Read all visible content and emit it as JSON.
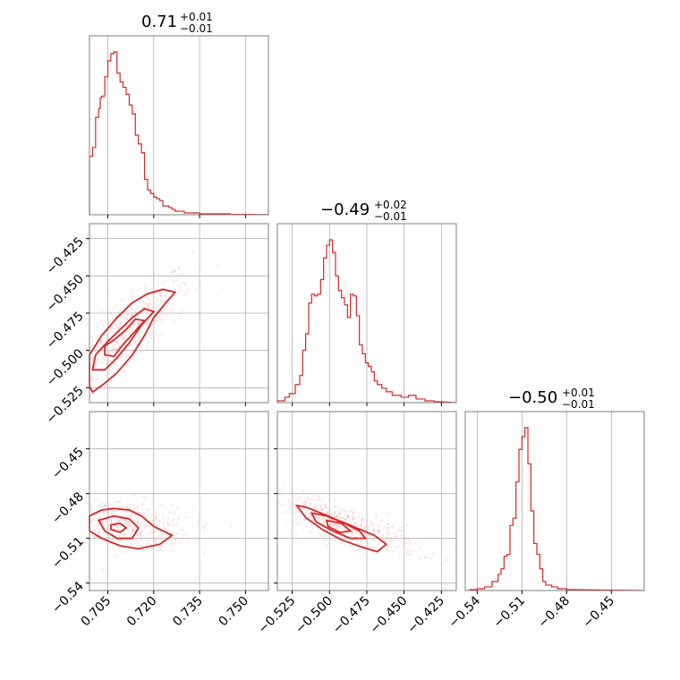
{
  "figure": {
    "style_color": "#d62728",
    "fill_light": "#f6c6c7",
    "fill_mid": "#ee8f91",
    "fill_dark": "#e04a4d"
  },
  "chart_data": [
    {
      "type": "histogram",
      "panel": "hist-0",
      "title": {
        "main": "0.71",
        "sup": "+0.01",
        "sub": "−0.01"
      },
      "x_range": [
        0.699,
        0.7575
      ],
      "x_ticks": [
        0.705,
        0.72,
        0.735,
        0.75
      ],
      "show_tick_labels": false,
      "grid": true,
      "bins": [
        [
          0.699,
          0.33
        ],
        [
          0.7,
          0.38
        ],
        [
          0.701,
          0.55
        ],
        [
          0.702,
          0.6
        ],
        [
          0.7025,
          0.66
        ],
        [
          0.703,
          0.67
        ],
        [
          0.704,
          0.78
        ],
        [
          0.705,
          0.87
        ],
        [
          0.706,
          0.91
        ],
        [
          0.707,
          0.92
        ],
        [
          0.708,
          0.8
        ],
        [
          0.709,
          0.75
        ],
        [
          0.71,
          0.72
        ],
        [
          0.711,
          0.68
        ],
        [
          0.712,
          0.62
        ],
        [
          0.713,
          0.57
        ],
        [
          0.714,
          0.45
        ],
        [
          0.715,
          0.4
        ],
        [
          0.716,
          0.35
        ],
        [
          0.717,
          0.2
        ],
        [
          0.718,
          0.14
        ],
        [
          0.719,
          0.12
        ],
        [
          0.72,
          0.1
        ],
        [
          0.721,
          0.09
        ],
        [
          0.722,
          0.08
        ],
        [
          0.723,
          0.05
        ],
        [
          0.724,
          0.05
        ],
        [
          0.725,
          0.04
        ],
        [
          0.726,
          0.03
        ],
        [
          0.727,
          0.02
        ],
        [
          0.728,
          0.02
        ],
        [
          0.729,
          0.02
        ],
        [
          0.73,
          0.01
        ],
        [
          0.732,
          0.01
        ],
        [
          0.735,
          0.005
        ],
        [
          0.74,
          0.005
        ],
        [
          0.745,
          0.002
        ],
        [
          0.75,
          0.002
        ]
      ]
    },
    {
      "type": "scatter-contour",
      "panel": "joint-1-0",
      "x_range": [
        0.699,
        0.7575
      ],
      "y_range": [
        -0.535,
        -0.415
      ],
      "x_ticks": [
        0.705,
        0.72,
        0.735,
        0.75
      ],
      "y_ticks": [
        -0.425,
        -0.45,
        -0.475,
        -0.5,
        -0.525
      ],
      "y_tick_labels": [
        "−0.425",
        "−0.450",
        "−0.475",
        "−0.500",
        "−0.525"
      ],
      "grid": true,
      "center": [
        0.71,
        -0.49
      ],
      "spread": [
        0.008,
        0.015
      ],
      "correlation": 0.85,
      "contours": [
        [
          [
            0.699,
            -0.524
          ],
          [
            0.7,
            -0.528
          ],
          [
            0.704,
            -0.522
          ],
          [
            0.708,
            -0.515
          ],
          [
            0.713,
            -0.503
          ],
          [
            0.717,
            -0.49
          ],
          [
            0.72,
            -0.478
          ],
          [
            0.724,
            -0.468
          ],
          [
            0.727,
            -0.461
          ],
          [
            0.723,
            -0.459
          ],
          [
            0.718,
            -0.462
          ],
          [
            0.713,
            -0.468
          ],
          [
            0.708,
            -0.478
          ],
          [
            0.703,
            -0.49
          ],
          [
            0.699,
            -0.503
          ]
        ],
        [
          [
            0.7,
            -0.513
          ],
          [
            0.704,
            -0.513
          ],
          [
            0.708,
            -0.505
          ],
          [
            0.712,
            -0.495
          ],
          [
            0.716,
            -0.483
          ],
          [
            0.72,
            -0.474
          ],
          [
            0.717,
            -0.472
          ],
          [
            0.713,
            -0.478
          ],
          [
            0.709,
            -0.486
          ],
          [
            0.705,
            -0.494
          ],
          [
            0.701,
            -0.503
          ]
        ],
        [
          [
            0.704,
            -0.503
          ],
          [
            0.707,
            -0.504
          ],
          [
            0.71,
            -0.496
          ],
          [
            0.714,
            -0.487
          ],
          [
            0.717,
            -0.48
          ],
          [
            0.714,
            -0.479
          ],
          [
            0.711,
            -0.486
          ],
          [
            0.707,
            -0.493
          ],
          [
            0.704,
            -0.497
          ]
        ]
      ]
    },
    {
      "type": "histogram",
      "panel": "hist-1",
      "title": {
        "main": "−0.49",
        "sup": "+0.02",
        "sub": "−0.01"
      },
      "x_range": [
        -0.535,
        -0.415
      ],
      "x_ticks": [
        -0.525,
        -0.5,
        -0.475,
        -0.45,
        -0.425
      ],
      "show_tick_labels": false,
      "grid": true,
      "bins": [
        [
          -0.535,
          0.01
        ],
        [
          -0.53,
          0.03
        ],
        [
          -0.527,
          0.05
        ],
        [
          -0.523,
          0.1
        ],
        [
          -0.52,
          0.15
        ],
        [
          -0.518,
          0.29
        ],
        [
          -0.516,
          0.38
        ],
        [
          -0.514,
          0.55
        ],
        [
          -0.512,
          0.6
        ],
        [
          -0.51,
          0.59
        ],
        [
          -0.508,
          0.6
        ],
        [
          -0.506,
          0.68
        ],
        [
          -0.504,
          0.8
        ],
        [
          -0.502,
          0.87
        ],
        [
          -0.5,
          0.9
        ],
        [
          -0.498,
          0.83
        ],
        [
          -0.496,
          0.7
        ],
        [
          -0.494,
          0.62
        ],
        [
          -0.492,
          0.58
        ],
        [
          -0.49,
          0.54
        ],
        [
          -0.488,
          0.47
        ],
        [
          -0.486,
          0.6
        ],
        [
          -0.484,
          0.59
        ],
        [
          -0.482,
          0.48
        ],
        [
          -0.48,
          0.32
        ],
        [
          -0.478,
          0.27
        ],
        [
          -0.476,
          0.22
        ],
        [
          -0.474,
          0.2
        ],
        [
          -0.472,
          0.17
        ],
        [
          -0.47,
          0.12
        ],
        [
          -0.468,
          0.1
        ],
        [
          -0.465,
          0.08
        ],
        [
          -0.462,
          0.06
        ],
        [
          -0.458,
          0.04
        ],
        [
          -0.452,
          0.03
        ],
        [
          -0.447,
          0.04
        ],
        [
          -0.442,
          0.02
        ],
        [
          -0.436,
          0.01
        ],
        [
          -0.43,
          0.005
        ]
      ]
    },
    {
      "type": "scatter-contour",
      "panel": "joint-2-0",
      "x_range": [
        0.699,
        0.7575
      ],
      "y_range": [
        -0.545,
        -0.425
      ],
      "x_ticks": [
        0.705,
        0.72,
        0.735,
        0.75
      ],
      "x_tick_labels": [
        "0.705",
        "0.720",
        "0.735",
        "0.750"
      ],
      "y_ticks": [
        -0.45,
        -0.48,
        -0.51,
        -0.54
      ],
      "y_tick_labels": [
        "−0.45",
        "−0.48",
        "−0.51",
        "−0.54"
      ],
      "grid": true,
      "center": [
        0.71,
        -0.5
      ],
      "spread": [
        0.008,
        0.006
      ],
      "correlation": -0.3,
      "contours": [
        [
          [
            0.699,
            -0.495
          ],
          [
            0.703,
            -0.491
          ],
          [
            0.707,
            -0.49
          ],
          [
            0.712,
            -0.491
          ],
          [
            0.716,
            -0.495
          ],
          [
            0.72,
            -0.502
          ],
          [
            0.726,
            -0.508
          ],
          [
            0.722,
            -0.514
          ],
          [
            0.715,
            -0.517
          ],
          [
            0.709,
            -0.515
          ],
          [
            0.703,
            -0.51
          ],
          [
            0.699,
            -0.505
          ]
        ],
        [
          [
            0.702,
            -0.498
          ],
          [
            0.707,
            -0.495
          ],
          [
            0.712,
            -0.497
          ],
          [
            0.715,
            -0.503
          ],
          [
            0.713,
            -0.51
          ],
          [
            0.708,
            -0.51
          ],
          [
            0.704,
            -0.505
          ]
        ],
        [
          [
            0.706,
            -0.501
          ],
          [
            0.709,
            -0.5
          ],
          [
            0.711,
            -0.503
          ],
          [
            0.709,
            -0.506
          ],
          [
            0.706,
            -0.504
          ]
        ]
      ]
    },
    {
      "type": "scatter-contour",
      "panel": "joint-2-1",
      "x_range": [
        -0.535,
        -0.415
      ],
      "y_range": [
        -0.545,
        -0.425
      ],
      "x_ticks": [
        -0.525,
        -0.5,
        -0.475,
        -0.45,
        -0.425
      ],
      "x_tick_labels": [
        "−0.525",
        "−0.500",
        "−0.475",
        "−0.450",
        "−0.425"
      ],
      "y_ticks": [
        -0.45,
        -0.48,
        -0.51,
        -0.54
      ],
      "grid": true,
      "center": [
        -0.49,
        -0.5
      ],
      "spread": [
        0.018,
        0.007
      ],
      "correlation": -0.8,
      "contours": [
        [
          [
            -0.522,
            -0.488
          ],
          [
            -0.516,
            -0.489
          ],
          [
            -0.506,
            -0.493
          ],
          [
            -0.494,
            -0.498
          ],
          [
            -0.482,
            -0.503
          ],
          [
            -0.47,
            -0.508
          ],
          [
            -0.462,
            -0.514
          ],
          [
            -0.468,
            -0.519
          ],
          [
            -0.478,
            -0.516
          ],
          [
            -0.492,
            -0.511
          ],
          [
            -0.505,
            -0.504
          ],
          [
            -0.516,
            -0.496
          ]
        ],
        [
          [
            -0.512,
            -0.493
          ],
          [
            -0.502,
            -0.495
          ],
          [
            -0.49,
            -0.5
          ],
          [
            -0.48,
            -0.505
          ],
          [
            -0.476,
            -0.51
          ],
          [
            -0.486,
            -0.51
          ],
          [
            -0.498,
            -0.505
          ],
          [
            -0.509,
            -0.499
          ]
        ],
        [
          [
            -0.502,
            -0.498
          ],
          [
            -0.492,
            -0.5
          ],
          [
            -0.486,
            -0.505
          ],
          [
            -0.493,
            -0.506
          ],
          [
            -0.501,
            -0.502
          ]
        ]
      ]
    },
    {
      "type": "histogram",
      "panel": "hist-2",
      "title": {
        "main": "−0.50",
        "sup": "+0.01",
        "sub": "−0.01"
      },
      "x_range": [
        -0.548,
        -0.428
      ],
      "x_ticks": [
        -0.54,
        -0.51,
        -0.48,
        -0.45
      ],
      "x_tick_labels": [
        "−0.54",
        "−0.51",
        "−0.48",
        "−0.45"
      ],
      "show_tick_labels": true,
      "grid": true,
      "bins": [
        [
          -0.545,
          0.005
        ],
        [
          -0.54,
          0.01
        ],
        [
          -0.535,
          0.02
        ],
        [
          -0.53,
          0.05
        ],
        [
          -0.526,
          0.09
        ],
        [
          -0.524,
          0.12
        ],
        [
          -0.522,
          0.19
        ],
        [
          -0.52,
          0.2
        ],
        [
          -0.518,
          0.36
        ],
        [
          -0.516,
          0.4
        ],
        [
          -0.514,
          0.6
        ],
        [
          -0.512,
          0.78
        ],
        [
          -0.51,
          0.85
        ],
        [
          -0.508,
          0.9
        ],
        [
          -0.506,
          0.7
        ],
        [
          -0.504,
          0.44
        ],
        [
          -0.502,
          0.26
        ],
        [
          -0.5,
          0.2
        ],
        [
          -0.498,
          0.12
        ],
        [
          -0.496,
          0.05
        ],
        [
          -0.494,
          0.03
        ],
        [
          -0.49,
          0.02
        ],
        [
          -0.486,
          0.01
        ],
        [
          -0.48,
          0.005
        ]
      ]
    }
  ]
}
